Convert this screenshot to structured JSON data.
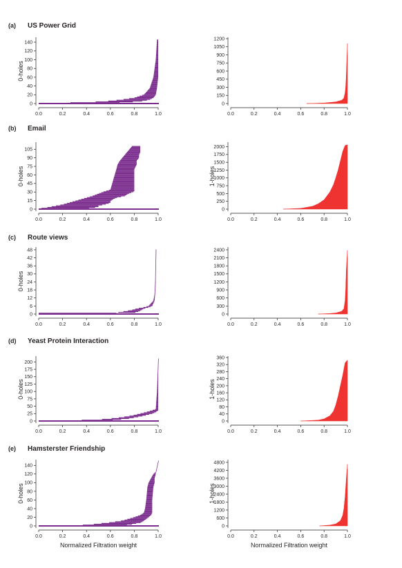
{
  "figure": {
    "common_xlabel": "Normalized Filtration weight",
    "colors": {
      "zero_holes": "#7b2d8e",
      "one_holes": "#ee3330",
      "axes": "#231f20"
    }
  },
  "chart_data": [
    {
      "panel": "(a)",
      "title": "US Power Grid",
      "kind": "0-holes",
      "type": "bar",
      "orientation": "horizontal-barcode",
      "ylabel": "0-holes",
      "xlabel": "",
      "xlim": [
        0,
        1
      ],
      "ylim": [
        0,
        148
      ],
      "x_ticks": [
        "0.0",
        "0.2",
        "0.4",
        "0.6",
        "0.8",
        "1.0"
      ],
      "y_ticks": [
        "0",
        "20",
        "40",
        "60",
        "80",
        "100",
        "120",
        "140"
      ],
      "curve": {
        "x": [
          0.0,
          0.5,
          0.7,
          0.8,
          0.88,
          0.93,
          0.96,
          0.98,
          0.99,
          1.0
        ],
        "y": [
          0,
          2,
          5,
          8,
          14,
          22,
          35,
          60,
          100,
          145
        ]
      },
      "band": {
        "start": [
          0.0,
          0.3,
          0.5,
          0.6,
          0.7,
          0.8,
          0.88,
          0.93,
          0.96,
          0.98,
          0.99
        ],
        "end": [
          0.5,
          0.7,
          0.8,
          0.88,
          0.93,
          0.96,
          0.98,
          0.99,
          1.0,
          1.0,
          1.0
        ],
        "y": [
          1,
          2,
          4,
          6,
          9,
          13,
          20,
          35,
          60,
          100,
          145
        ]
      },
      "infinite_bar": true
    },
    {
      "panel": "",
      "title": "",
      "kind": "1-holes",
      "type": "area",
      "ylabel": "",
      "xlabel": "",
      "xlim": [
        0,
        1
      ],
      "ylim": [
        0,
        1200
      ],
      "x_ticks": [
        "0.0",
        "0.2",
        "0.4",
        "0.6",
        "0.8",
        "1.0"
      ],
      "y_ticks": [
        "0",
        "150",
        "300",
        "450",
        "600",
        "750",
        "900",
        "1050",
        "1200"
      ],
      "curve": {
        "x": [
          0.65,
          0.8,
          0.9,
          0.95,
          0.97,
          0.98,
          0.985,
          0.99,
          0.995,
          1.0
        ],
        "y": [
          0,
          10,
          30,
          60,
          100,
          200,
          300,
          500,
          800,
          1110
        ]
      }
    },
    {
      "panel": "(b)",
      "title": "Email",
      "kind": "0-holes",
      "type": "bar",
      "orientation": "horizontal-barcode",
      "ylabel": "0-holes",
      "xlabel": "",
      "xlim": [
        0,
        1
      ],
      "ylim": [
        0,
        115
      ],
      "x_ticks": [
        "0.0",
        "0.2",
        "0.4",
        "0.6",
        "0.8",
        "1.0"
      ],
      "y_ticks": [
        "0",
        "15",
        "30",
        "45",
        "60",
        "75",
        "90",
        "105"
      ],
      "band": {
        "start": [
          0.0,
          0.05,
          0.1,
          0.15,
          0.2,
          0.25,
          0.3,
          0.35,
          0.4,
          0.45,
          0.5,
          0.55,
          0.6,
          0.65,
          0.66,
          0.68,
          0.7,
          0.72,
          0.74,
          0.76,
          0.78
        ],
        "end": [
          0.4,
          0.45,
          0.5,
          0.5,
          0.55,
          0.6,
          0.6,
          0.62,
          0.65,
          0.72,
          0.75,
          0.8,
          0.8,
          0.8,
          0.82,
          0.82,
          0.84,
          0.84,
          0.85,
          0.85,
          0.85
        ],
        "y": [
          1,
          2,
          4,
          6,
          8,
          11,
          14,
          17,
          20,
          23,
          27,
          31,
          34,
          70,
          78,
          85,
          90,
          95,
          100,
          105,
          110
        ]
      },
      "infinite_bar": true
    },
    {
      "panel": "",
      "title": "",
      "kind": "1-holes",
      "type": "area",
      "ylabel": "1-holes",
      "xlabel": "",
      "xlim": [
        0,
        1
      ],
      "ylim": [
        0,
        2100
      ],
      "x_ticks": [
        "0.0",
        "0.2",
        "0.4",
        "0.6",
        "0.8",
        "1.0"
      ],
      "y_ticks": [
        "0",
        "250",
        "500",
        "750",
        "1000",
        "1250",
        "1500",
        "1750",
        "2000"
      ],
      "curve": {
        "x": [
          0.45,
          0.6,
          0.7,
          0.75,
          0.8,
          0.85,
          0.88,
          0.9,
          0.92,
          0.94,
          0.96,
          0.98,
          1.0
        ],
        "y": [
          0,
          25,
          90,
          170,
          300,
          550,
          780,
          1000,
          1250,
          1550,
          1850,
          2040,
          2060
        ]
      }
    },
    {
      "panel": "(c)",
      "title": "Route views",
      "kind": "0-holes",
      "type": "bar",
      "orientation": "horizontal-barcode",
      "ylabel": "0-holes",
      "xlabel": "",
      "xlim": [
        0,
        1
      ],
      "ylim": [
        0,
        49
      ],
      "x_ticks": [
        "0.0",
        "0.2",
        "0.4",
        "0.6",
        "0.8",
        "1.0"
      ],
      "y_ticks": [
        "0",
        "6",
        "12",
        "18",
        "24",
        "30",
        "36",
        "42",
        "48"
      ],
      "band": {
        "start": [
          0.0,
          0.65,
          0.72,
          0.78,
          0.82,
          0.88,
          0.92,
          0.94,
          0.96,
          0.97,
          0.975,
          0.98
        ],
        "end": [
          0.65,
          0.8,
          0.84,
          0.86,
          0.88,
          0.92,
          0.95,
          0.96,
          0.97,
          0.975,
          0.98,
          0.98
        ],
        "y": [
          1,
          1,
          2,
          3,
          4,
          5,
          6,
          8,
          10,
          15,
          25,
          48
        ]
      },
      "infinite_bar": true
    },
    {
      "panel": "",
      "title": "",
      "kind": "1-holes",
      "type": "area",
      "ylabel": "",
      "xlabel": "",
      "xlim": [
        0,
        1
      ],
      "ylim": [
        0,
        2450
      ],
      "x_ticks": [
        "0.0",
        "0.2",
        "0.4",
        "0.6",
        "0.8",
        "1.0"
      ],
      "y_ticks": [
        "0",
        "300",
        "600",
        "900",
        "1200",
        "1500",
        "1800",
        "2100",
        "2400"
      ],
      "curve": {
        "x": [
          0.75,
          0.85,
          0.9,
          0.95,
          0.97,
          0.98,
          0.985,
          0.99,
          1.0
        ],
        "y": [
          0,
          20,
          40,
          100,
          200,
          500,
          900,
          1600,
          2380
        ]
      }
    },
    {
      "panel": "(d)",
      "title": "Yeast Protein Interaction",
      "kind": "0-holes",
      "type": "bar",
      "orientation": "horizontal-barcode",
      "ylabel": "0-holes",
      "xlabel": "",
      "xlim": [
        0,
        1
      ],
      "ylim": [
        0,
        215
      ],
      "x_ticks": [
        "0.0",
        "0.2",
        "0.4",
        "0.6",
        "0.8",
        "1.0"
      ],
      "y_ticks": [
        "0",
        "25",
        "50",
        "75",
        "100",
        "125",
        "150",
        "175",
        "200"
      ],
      "band": {
        "start": [
          0.0,
          0.3,
          0.45,
          0.55,
          0.6,
          0.65,
          0.7,
          0.75,
          0.8,
          0.85,
          0.9,
          0.95,
          0.98,
          0.99,
          1.0
        ],
        "end": [
          0.5,
          0.6,
          0.65,
          0.7,
          0.75,
          0.78,
          0.82,
          0.86,
          0.9,
          0.95,
          0.98,
          1.0,
          1.0,
          1.0,
          1.0
        ],
        "y": [
          1,
          2,
          4,
          6,
          8,
          10,
          13,
          16,
          20,
          25,
          30,
          36,
          40,
          100,
          210
        ]
      },
      "infinite_bar": true
    },
    {
      "panel": "",
      "title": "",
      "kind": "1-holes",
      "type": "area",
      "ylabel": "1-holes",
      "xlabel": "",
      "xlim": [
        0,
        1
      ],
      "ylim": [
        0,
        360
      ],
      "x_ticks": [
        "0.0",
        "0.2",
        "0.4",
        "0.6",
        "0.8",
        "1.0"
      ],
      "y_ticks": [
        "0",
        "40",
        "80",
        "120",
        "160",
        "200",
        "240",
        "280",
        "320",
        "360"
      ],
      "curve": {
        "x": [
          0.6,
          0.75,
          0.8,
          0.85,
          0.88,
          0.9,
          0.92,
          0.94,
          0.96,
          0.98,
          1.0
        ],
        "y": [
          0,
          5,
          12,
          30,
          55,
          90,
          140,
          200,
          260,
          330,
          345
        ]
      }
    },
    {
      "panel": "(e)",
      "title": "Hamsterster Friendship",
      "kind": "0-holes",
      "type": "bar",
      "orientation": "horizontal-barcode",
      "ylabel": "0-holes",
      "xlabel": "Normalized Filtration weight",
      "xlim": [
        0,
        1
      ],
      "ylim": [
        0,
        150
      ],
      "x_ticks": [
        "0.0",
        "0.2",
        "0.4",
        "0.6",
        "0.8",
        "1.0"
      ],
      "y_ticks": [
        "0",
        "20",
        "40",
        "60",
        "80",
        "100",
        "120",
        "140"
      ],
      "band": {
        "start": [
          0.0,
          0.4,
          0.5,
          0.6,
          0.7,
          0.75,
          0.8,
          0.85,
          0.88,
          0.89,
          0.9,
          0.91,
          0.92,
          0.94,
          0.96,
          0.98,
          1.0
        ],
        "end": [
          0.6,
          0.75,
          0.8,
          0.86,
          0.88,
          0.9,
          0.92,
          0.94,
          0.95,
          0.95,
          0.95,
          0.96,
          0.97,
          0.97,
          0.98,
          0.98,
          1.0
        ],
        "y": [
          1,
          2,
          5,
          8,
          12,
          16,
          20,
          25,
          30,
          40,
          60,
          90,
          100,
          110,
          120,
          125,
          150
        ]
      },
      "infinite_bar": true
    },
    {
      "panel": "",
      "title": "",
      "kind": "1-holes",
      "type": "area",
      "ylabel": "1-holes",
      "xlabel": "Normalized Filtration weight",
      "xlim": [
        0,
        1
      ],
      "ylim": [
        0,
        4900
      ],
      "x_ticks": [
        "0.0",
        "0.2",
        "0.4",
        "0.6",
        "0.8",
        "1.0"
      ],
      "y_ticks": [
        "0",
        "600",
        "1200",
        "1800",
        "2400",
        "3000",
        "3600",
        "4200",
        "4800"
      ],
      "curve": {
        "x": [
          0.76,
          0.85,
          0.9,
          0.94,
          0.96,
          0.97,
          0.98,
          0.99,
          1.0
        ],
        "y": [
          0,
          60,
          150,
          400,
          800,
          1300,
          2200,
          3500,
          4650
        ]
      }
    }
  ]
}
